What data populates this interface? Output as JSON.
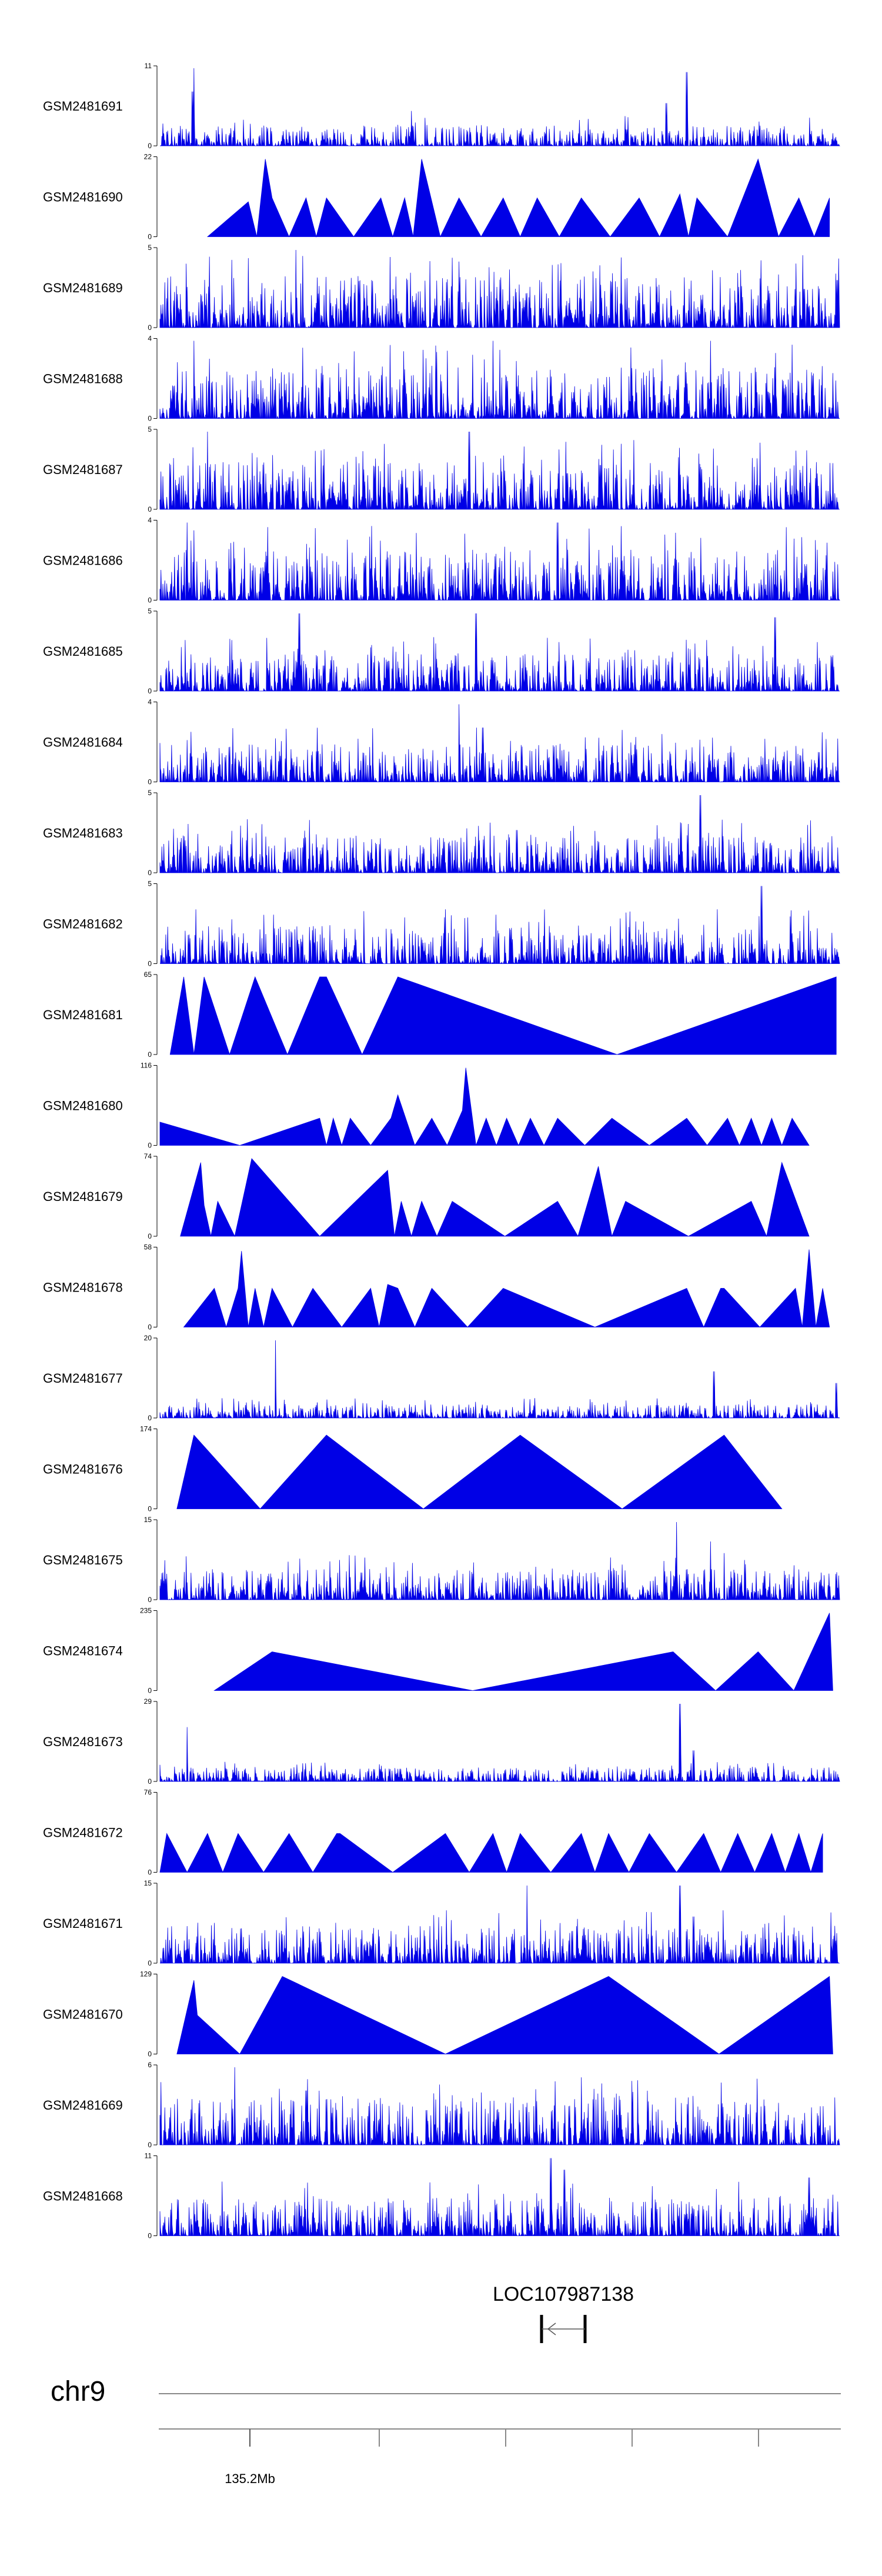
{
  "chart_data": {
    "type": "area",
    "title": "",
    "xlabel": "",
    "ylabel": "",
    "chromosome": "chr9",
    "x_tick_label": "135.2Mb",
    "gene": {
      "name": "LOC107987138",
      "strand": "-"
    },
    "tracks": [
      {
        "name": "GSM2481691",
        "ymax": 11,
        "style": "dense",
        "seed": 91,
        "base": 0.12,
        "peaks": [
          [
            0.05,
            1.0
          ],
          [
            0.048,
            0.7
          ],
          [
            0.775,
            0.95
          ],
          [
            0.745,
            0.55
          ],
          [
            0.37,
            0.45
          ]
        ]
      },
      {
        "name": "GSM2481690",
        "ymax": 22,
        "style": "sparse",
        "start": 0.07,
        "end": 0.985,
        "peaks": [
          [
            0.13,
            0.45
          ],
          [
            0.155,
            1.0
          ],
          [
            0.165,
            0.5
          ],
          [
            0.215,
            0.5
          ],
          [
            0.245,
            0.5
          ],
          [
            0.325,
            0.5
          ],
          [
            0.36,
            0.5
          ],
          [
            0.385,
            1.0
          ],
          [
            0.44,
            0.5
          ],
          [
            0.505,
            0.5
          ],
          [
            0.555,
            0.5
          ],
          [
            0.62,
            0.5
          ],
          [
            0.705,
            0.5
          ],
          [
            0.765,
            0.55
          ],
          [
            0.79,
            0.5
          ],
          [
            0.88,
            1.0
          ],
          [
            0.94,
            0.5
          ],
          [
            0.985,
            0.5
          ]
        ]
      },
      {
        "name": "GSM2481689",
        "ymax": 5,
        "style": "dense",
        "seed": 89,
        "base": 0.3,
        "peaks": [
          [
            0.2,
            1.0
          ],
          [
            0.43,
            0.9
          ],
          [
            0.44,
            0.85
          ]
        ]
      },
      {
        "name": "GSM2481688",
        "ymax": 4,
        "style": "dense",
        "seed": 88,
        "base": 0.3,
        "peaks": [
          [
            0.05,
            1.0
          ],
          [
            0.49,
            1.0
          ],
          [
            0.81,
            1.0
          ],
          [
            0.93,
            0.95
          ]
        ]
      },
      {
        "name": "GSM2481687",
        "ymax": 5,
        "style": "dense",
        "seed": 87,
        "base": 0.28,
        "peaks": [
          [
            0.07,
            1.0
          ],
          [
            0.455,
            1.0
          ]
        ]
      },
      {
        "name": "GSM2481686",
        "ymax": 4,
        "style": "dense",
        "seed": 86,
        "base": 0.3,
        "peaks": [
          [
            0.04,
            1.0
          ],
          [
            0.05,
            0.9
          ],
          [
            0.585,
            1.0
          ]
        ]
      },
      {
        "name": "GSM2481685",
        "ymax": 5,
        "style": "dense",
        "seed": 85,
        "base": 0.22,
        "peaks": [
          [
            0.205,
            1.0
          ],
          [
            0.465,
            1.0
          ],
          [
            0.905,
            0.95
          ]
        ]
      },
      {
        "name": "GSM2481684",
        "ymax": 4,
        "style": "dense",
        "seed": 84,
        "base": 0.22,
        "peaks": [
          [
            0.44,
            1.0
          ],
          [
            0.475,
            0.7
          ]
        ]
      },
      {
        "name": "GSM2481683",
        "ymax": 5,
        "style": "dense",
        "seed": 83,
        "base": 0.22,
        "peaks": [
          [
            0.795,
            1.0
          ],
          [
            0.525,
            0.55
          ]
        ]
      },
      {
        "name": "GSM2481682",
        "ymax": 5,
        "style": "dense",
        "seed": 82,
        "base": 0.22,
        "peaks": [
          [
            0.885,
            1.0
          ],
          [
            0.82,
            0.7
          ],
          [
            0.42,
            0.7
          ]
        ]
      },
      {
        "name": "GSM2481681",
        "ymax": 65,
        "style": "sparse",
        "start": 0.015,
        "end": 0.995,
        "peaks": [
          [
            0.035,
            1.0
          ],
          [
            0.065,
            1.0
          ],
          [
            0.14,
            1.0
          ],
          [
            0.235,
            1.0
          ],
          [
            0.245,
            1.0
          ],
          [
            0.35,
            1.0
          ],
          [
            0.995,
            1.0
          ]
        ]
      },
      {
        "name": "GSM2481680",
        "ymax": 116,
        "style": "sparse",
        "start": 0.0,
        "end": 0.955,
        "peaks": [
          [
            0.0,
            0.3
          ],
          [
            0.235,
            0.35
          ],
          [
            0.255,
            0.35
          ],
          [
            0.28,
            0.35
          ],
          [
            0.34,
            0.35
          ],
          [
            0.35,
            0.65
          ],
          [
            0.4,
            0.35
          ],
          [
            0.445,
            0.45
          ],
          [
            0.45,
            1.0
          ],
          [
            0.48,
            0.35
          ],
          [
            0.51,
            0.35
          ],
          [
            0.545,
            0.35
          ],
          [
            0.585,
            0.35
          ],
          [
            0.665,
            0.35
          ],
          [
            0.775,
            0.35
          ],
          [
            0.835,
            0.35
          ],
          [
            0.87,
            0.35
          ],
          [
            0.9,
            0.35
          ],
          [
            0.93,
            0.35
          ]
        ]
      },
      {
        "name": "GSM2481679",
        "ymax": 74,
        "style": "sparse",
        "start": 0.03,
        "end": 0.955,
        "peaks": [
          [
            0.06,
            0.95
          ],
          [
            0.065,
            0.4
          ],
          [
            0.085,
            0.45
          ],
          [
            0.135,
            1.0
          ],
          [
            0.335,
            0.85
          ],
          [
            0.355,
            0.45
          ],
          [
            0.385,
            0.45
          ],
          [
            0.43,
            0.45
          ],
          [
            0.585,
            0.45
          ],
          [
            0.645,
            0.9
          ],
          [
            0.685,
            0.45
          ],
          [
            0.87,
            0.45
          ],
          [
            0.915,
            0.95
          ]
        ]
      },
      {
        "name": "GSM2481678",
        "ymax": 58,
        "style": "sparse",
        "start": 0.035,
        "end": 0.985,
        "peaks": [
          [
            0.08,
            0.5
          ],
          [
            0.115,
            0.5
          ],
          [
            0.12,
            0.98
          ],
          [
            0.14,
            0.5
          ],
          [
            0.165,
            0.5
          ],
          [
            0.225,
            0.5
          ],
          [
            0.31,
            0.5
          ],
          [
            0.335,
            0.55
          ],
          [
            0.35,
            0.5
          ],
          [
            0.4,
            0.5
          ],
          [
            0.505,
            0.5
          ],
          [
            0.775,
            0.5
          ],
          [
            0.825,
            0.5
          ],
          [
            0.83,
            0.5
          ],
          [
            0.935,
            0.5
          ],
          [
            0.955,
            1.0
          ],
          [
            0.975,
            0.5
          ]
        ]
      },
      {
        "name": "GSM2481677",
        "ymax": 20,
        "style": "dense",
        "seed": 77,
        "base": 0.08,
        "peaks": [
          [
            0.17,
            1.0
          ],
          [
            0.815,
            0.6
          ],
          [
            0.995,
            0.45
          ]
        ]
      },
      {
        "name": "GSM2481676",
        "ymax": 174,
        "style": "sparse",
        "start": 0.025,
        "end": 0.915,
        "peaks": [
          [
            0.05,
            0.95
          ],
          [
            0.245,
            0.95
          ],
          [
            0.53,
            0.95
          ],
          [
            0.83,
            0.95
          ]
        ]
      },
      {
        "name": "GSM2481675",
        "ymax": 15,
        "style": "dense",
        "seed": 75,
        "base": 0.18,
        "peaks": [
          [
            0.76,
            1.0
          ],
          [
            0.81,
            0.75
          ],
          [
            0.83,
            0.6
          ]
        ]
      },
      {
        "name": "GSM2481674",
        "ymax": 235,
        "style": "sparse",
        "start": 0.08,
        "end": 0.99,
        "peaks": [
          [
            0.165,
            0.5
          ],
          [
            0.755,
            0.5
          ],
          [
            0.88,
            0.5
          ],
          [
            0.985,
            1.0
          ]
        ]
      },
      {
        "name": "GSM2481673",
        "ymax": 29,
        "style": "dense",
        "seed": 73,
        "base": 0.08,
        "peaks": [
          [
            0.04,
            0.7
          ],
          [
            0.765,
            1.0
          ],
          [
            0.785,
            0.4
          ]
        ]
      },
      {
        "name": "GSM2481672",
        "ymax": 76,
        "style": "sparse",
        "start": 0.0,
        "end": 0.975,
        "peaks": [
          [
            0.01,
            0.5
          ],
          [
            0.07,
            0.5
          ],
          [
            0.115,
            0.5
          ],
          [
            0.19,
            0.5
          ],
          [
            0.26,
            0.5
          ],
          [
            0.265,
            0.5
          ],
          [
            0.42,
            0.5
          ],
          [
            0.49,
            0.5
          ],
          [
            0.53,
            0.5
          ],
          [
            0.62,
            0.5
          ],
          [
            0.66,
            0.5
          ],
          [
            0.72,
            0.5
          ],
          [
            0.8,
            0.5
          ],
          [
            0.85,
            0.5
          ],
          [
            0.9,
            0.5
          ],
          [
            0.94,
            0.5
          ],
          [
            0.975,
            0.5
          ]
        ]
      },
      {
        "name": "GSM2481671",
        "ymax": 15,
        "style": "dense",
        "seed": 71,
        "base": 0.22,
        "peaks": [
          [
            0.54,
            1.0
          ],
          [
            0.765,
            1.0
          ],
          [
            0.785,
            0.6
          ]
        ]
      },
      {
        "name": "GSM2481670",
        "ymax": 129,
        "style": "sparse",
        "start": 0.025,
        "end": 0.99,
        "peaks": [
          [
            0.05,
            0.95
          ],
          [
            0.055,
            0.5
          ],
          [
            0.18,
            1.0
          ],
          [
            0.66,
            1.0
          ],
          [
            0.985,
            1.0
          ]
        ]
      },
      {
        "name": "GSM2481669",
        "ymax": 6,
        "style": "dense",
        "seed": 69,
        "base": 0.28,
        "peaks": [
          [
            0.11,
            1.0
          ],
          [
            0.215,
            0.7
          ]
        ]
      },
      {
        "name": "GSM2481668",
        "ymax": 11,
        "style": "dense",
        "seed": 68,
        "base": 0.22,
        "peaks": [
          [
            0.575,
            1.0
          ],
          [
            0.595,
            0.85
          ],
          [
            0.955,
            0.75
          ]
        ]
      }
    ]
  }
}
